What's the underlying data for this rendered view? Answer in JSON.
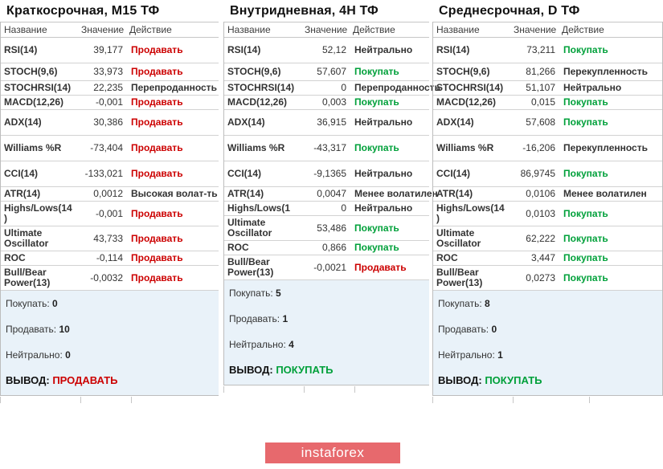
{
  "columns": {
    "name": "Название",
    "value": "Значение",
    "action": "Действие"
  },
  "panels": [
    {
      "title": "Краткосрочная, M15 ТФ",
      "rows": [
        {
          "name": "RSI(14)",
          "value": "39,177",
          "action": "Продавать",
          "action_type": "sell",
          "size": "tall"
        },
        {
          "name": "STOCH(9,6)",
          "value": "33,973",
          "action": "Продавать",
          "action_type": "sell",
          "size": "mid"
        },
        {
          "name": "STOCHRSI(14)",
          "value": "22,235",
          "action": "Перепроданность",
          "action_type": "neutral",
          "size": "normal"
        },
        {
          "name": "MACD(12,26)",
          "value": "-0,001",
          "action": "Продавать",
          "action_type": "sell",
          "size": "normal"
        },
        {
          "name": "ADX(14)",
          "value": "30,386",
          "action": "Продавать",
          "action_type": "sell",
          "size": "tall"
        },
        {
          "name": "Williams %R",
          "value": "-73,404",
          "action": "Продавать",
          "action_type": "sell",
          "size": "tall"
        },
        {
          "name": "CCI(14)",
          "value": "-133,021",
          "action": "Продавать",
          "action_type": "sell",
          "size": "tall"
        },
        {
          "name": "ATR(14)",
          "value": "0,0012",
          "action": "Высокая волат-ть",
          "action_type": "info",
          "size": "normal"
        },
        {
          "name": "Highs/Lows(14)",
          "value": "-0,001",
          "action": "Продавать",
          "action_type": "sell",
          "size": "normal"
        },
        {
          "name": "Ultimate Oscillator",
          "value": "43,733",
          "action": "Продавать",
          "action_type": "sell",
          "size": "normal"
        },
        {
          "name": "ROC",
          "value": "-0,114",
          "action": "Продавать",
          "action_type": "sell",
          "size": "normal"
        },
        {
          "name": "Bull/Bear Power(13)",
          "value": "-0,0032",
          "action": "Продавать",
          "action_type": "sell",
          "size": "normal"
        }
      ],
      "summary": {
        "buy_label": "Покупать:",
        "buy_count": "0",
        "sell_label": "Продавать:",
        "sell_count": "10",
        "neutral_label": "Нейтрально:",
        "neutral_count": "0",
        "verdict_label": "ВЫВОД:",
        "verdict": "ПРОДАВАТЬ",
        "verdict_type": "sell"
      }
    },
    {
      "title": "Внутридневная, 4H ТФ",
      "rows": [
        {
          "name": "RSI(14)",
          "value": "52,12",
          "action": "Нейтрально",
          "action_type": "neutral",
          "size": "tall"
        },
        {
          "name": "STOCH(9,6)",
          "value": "57,607",
          "action": "Покупать",
          "action_type": "buy",
          "size": "mid"
        },
        {
          "name": "STOCHRSI(14)",
          "value": "0",
          "action": "Перепроданность",
          "action_type": "neutral",
          "size": "normal"
        },
        {
          "name": "MACD(12,26)",
          "value": "0,003",
          "action": "Покупать",
          "action_type": "buy",
          "size": "normal"
        },
        {
          "name": "ADX(14)",
          "value": "36,915",
          "action": "Нейтрально",
          "action_type": "neutral",
          "size": "tall"
        },
        {
          "name": "Williams %R",
          "value": "-43,317",
          "action": "Покупать",
          "action_type": "buy",
          "size": "tall"
        },
        {
          "name": "CCI(14)",
          "value": "-9,1365",
          "action": "Нейтрально",
          "action_type": "neutral",
          "size": "tall"
        },
        {
          "name": "ATR(14)",
          "value": "0,0047",
          "action": "Менее волатилен",
          "action_type": "info",
          "size": "normal"
        },
        {
          "name": "Highs/Lows(1",
          "value": "0",
          "action": "Нейтрально",
          "action_type": "neutral",
          "size": "normal"
        },
        {
          "name": "Ultimate Oscillator",
          "value": "53,486",
          "action": "Покупать",
          "action_type": "buy",
          "size": "normal"
        },
        {
          "name": "ROC",
          "value": "0,866",
          "action": "Покупать",
          "action_type": "buy",
          "size": "normal"
        },
        {
          "name": "Bull/Bear Power(13)",
          "value": "-0,0021",
          "action": "Продавать",
          "action_type": "sell",
          "size": "normal"
        }
      ],
      "summary": {
        "buy_label": "Покупать:",
        "buy_count": "5",
        "sell_label": "Продавать:",
        "sell_count": "1",
        "neutral_label": "Нейтрально:",
        "neutral_count": "4",
        "verdict_label": "ВЫВОД:",
        "verdict": "ПОКУПАТЬ",
        "verdict_type": "buy"
      }
    },
    {
      "title": "Среднесрочная, D ТФ",
      "rows": [
        {
          "name": "RSI(14)",
          "value": "73,211",
          "action": "Покупать",
          "action_type": "buy",
          "size": "tall"
        },
        {
          "name": "STOCH(9,6)",
          "value": "81,266",
          "action": "Перекупленность",
          "action_type": "neutral",
          "size": "mid"
        },
        {
          "name": "STOCHRSI(14)",
          "value": "51,107",
          "action": "Нейтрально",
          "action_type": "neutral",
          "size": "normal"
        },
        {
          "name": "MACD(12,26)",
          "value": "0,015",
          "action": "Покупать",
          "action_type": "buy",
          "size": "normal"
        },
        {
          "name": "ADX(14)",
          "value": "57,608",
          "action": "Покупать",
          "action_type": "buy",
          "size": "tall"
        },
        {
          "name": "Williams %R",
          "value": "-16,206",
          "action": "Перекупленность",
          "action_type": "neutral",
          "size": "tall"
        },
        {
          "name": "CCI(14)",
          "value": "86,9745",
          "action": "Покупать",
          "action_type": "buy",
          "size": "tall"
        },
        {
          "name": "ATR(14)",
          "value": "0,0106",
          "action": "Менее волатилен",
          "action_type": "info",
          "size": "normal"
        },
        {
          "name": "Highs/Lows(14)",
          "value": "0,0103",
          "action": "Покупать",
          "action_type": "buy",
          "size": "normal"
        },
        {
          "name": "Ultimate Oscillator",
          "value": "62,222",
          "action": "Покупать",
          "action_type": "buy",
          "size": "normal"
        },
        {
          "name": "ROC",
          "value": "3,447",
          "action": "Покупать",
          "action_type": "buy",
          "size": "normal"
        },
        {
          "name": "Bull/Bear Power(13)",
          "value": "0,0273",
          "action": "Покупать",
          "action_type": "buy",
          "size": "normal"
        }
      ],
      "summary": {
        "buy_label": "Покупать:",
        "buy_count": "8",
        "sell_label": "Продавать:",
        "sell_count": "0",
        "neutral_label": "Нейтрально:",
        "neutral_count": "1",
        "verdict_label": "ВЫВОД:",
        "verdict": "ПОКУПАТЬ",
        "verdict_type": "buy"
      }
    }
  ],
  "footer": {
    "brand": "instaforex"
  },
  "colors": {
    "sell": "#cc0000",
    "buy": "#00a03a",
    "summary_bg": "#e9f2f9",
    "brand_bg": "#e7696d",
    "border": "#c6c6c6"
  }
}
